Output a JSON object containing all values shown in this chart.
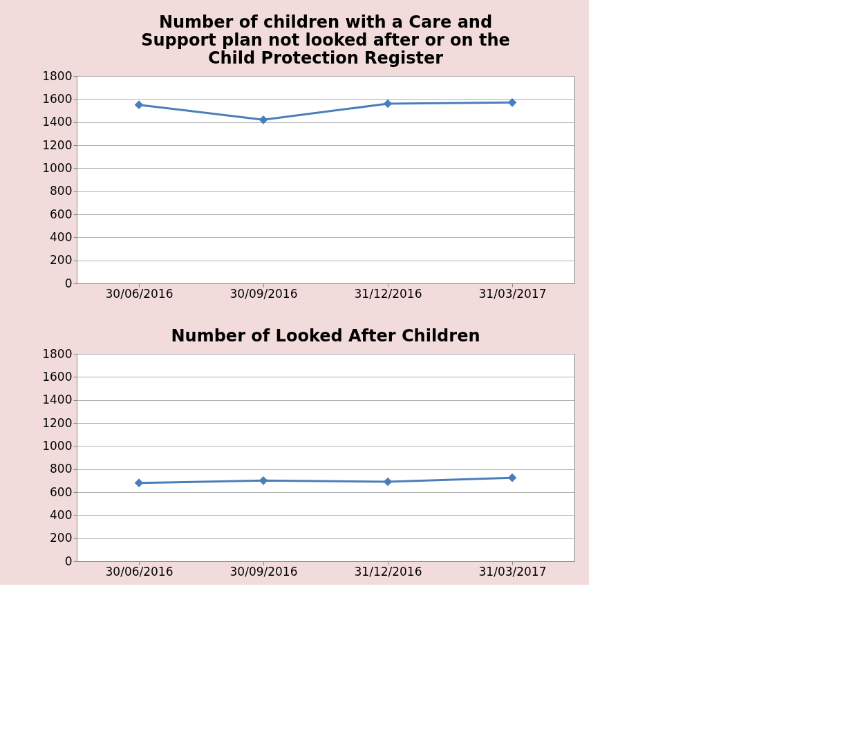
{
  "chart_data": [
    {
      "type": "line",
      "title": "Number of children with a Care and Support plan not looked after or on the Child Protection Register",
      "categories": [
        "30/06/2016",
        "30/09/2016",
        "31/12/2016",
        "31/03/2017"
      ],
      "series": [
        {
          "color": "#4a7ebb",
          "values": [
            1550,
            1420,
            1560,
            1570
          ]
        }
      ],
      "ylim": [
        0,
        1800
      ],
      "yticks": [
        0,
        200,
        400,
        600,
        800,
        1000,
        1200,
        1400,
        1600,
        1800
      ],
      "grid": "y",
      "marker": "diamond",
      "line_style": "solid"
    },
    {
      "type": "line",
      "title": "Number of Looked After Children",
      "categories": [
        "30/06/2016",
        "30/09/2016",
        "31/12/2016",
        "31/03/2017"
      ],
      "series": [
        {
          "color": "#4a7ebb",
          "values": [
            680,
            700,
            690,
            725
          ]
        }
      ],
      "ylim": [
        0,
        1800
      ],
      "yticks": [
        0,
        200,
        400,
        600,
        800,
        1000,
        1200,
        1400,
        1600,
        1800
      ],
      "grid": "y",
      "marker": "diamond",
      "line_style": "solid"
    }
  ]
}
